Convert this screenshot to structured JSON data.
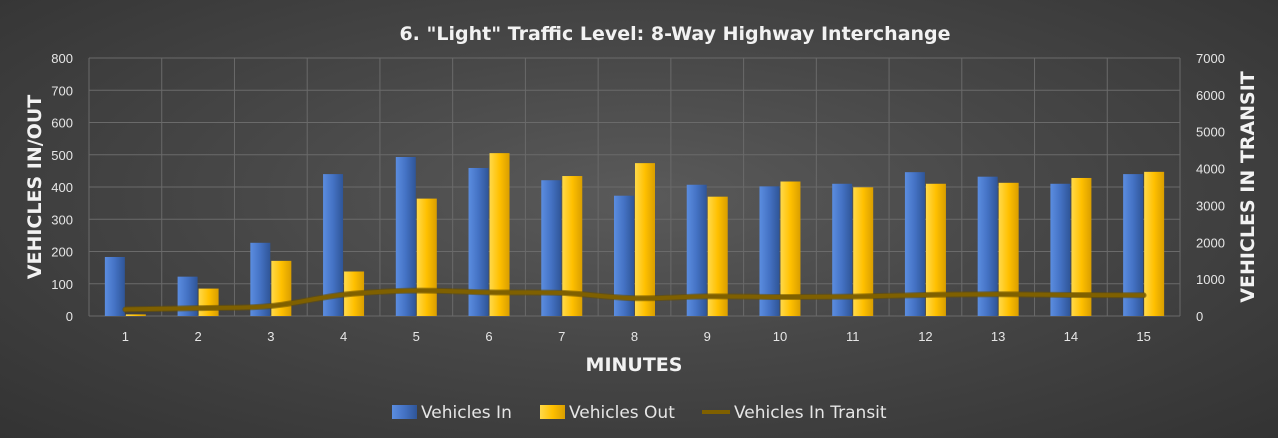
{
  "chart_data": {
    "type": "bar",
    "title": "6. \"Light\" Traffic Level: 8-Way Highway Interchange",
    "xlabel": "MINUTES",
    "ylabel": "VEHICLES IN/OUT",
    "y2label": "VEHICLES IN TRANSIT",
    "categories": [
      "1",
      "2",
      "3",
      "4",
      "5",
      "6",
      "7",
      "8",
      "9",
      "10",
      "11",
      "12",
      "13",
      "14",
      "15"
    ],
    "ylim": [
      0,
      800
    ],
    "y2lim": [
      0,
      7000
    ],
    "yticks": [
      0,
      100,
      200,
      300,
      400,
      500,
      600,
      700,
      800
    ],
    "y2ticks": [
      0,
      1000,
      2000,
      3000,
      4000,
      5000,
      6000,
      7000
    ],
    "grid": true,
    "legend_position": "bottom",
    "series": [
      {
        "name": "Vehicles In",
        "type": "bar",
        "axis": "left",
        "color": "#4472c4",
        "values": [
          183,
          122,
          227,
          440,
          493,
          459,
          421,
          373,
          407,
          402,
          410,
          446,
          432,
          410,
          440
        ]
      },
      {
        "name": "Vehicles Out",
        "type": "bar",
        "axis": "left",
        "color": "#ffc000",
        "values": [
          5,
          85,
          171,
          138,
          364,
          505,
          434,
          474,
          370,
          417,
          399,
          410,
          413,
          428,
          447
        ]
      },
      {
        "name": "Vehicles In Transit",
        "type": "line",
        "axis": "right",
        "color": "#7f6000",
        "values": [
          178,
          214,
          270,
          579,
          687,
          640,
          626,
          482,
          531,
          516,
          526,
          571,
          590,
          571,
          564
        ]
      }
    ]
  }
}
